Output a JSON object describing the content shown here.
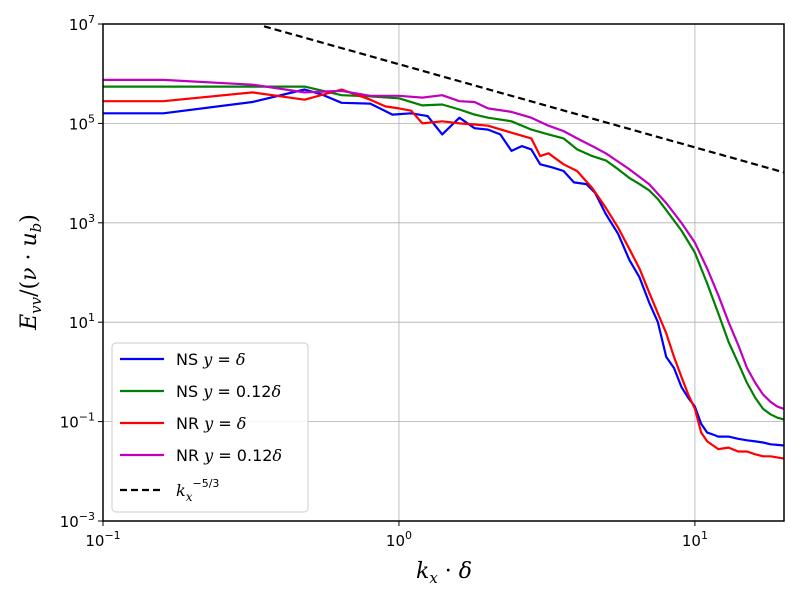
{
  "chart_data": {
    "type": "line",
    "title": "",
    "xlabel": "k_x · δ",
    "ylabel": "E_vv/(ν · u_b)",
    "xscale": "log",
    "yscale": "log",
    "xlim": [
      0.1,
      20
    ],
    "ylim": [
      0.001,
      10000000
    ],
    "grid": true,
    "legend_position": "lower-left",
    "x_ticks": [
      {
        "value": 0.1,
        "base": "10",
        "exp": "−1"
      },
      {
        "value": 1,
        "base": "10",
        "exp": "0"
      },
      {
        "value": 10,
        "base": "10",
        "exp": "1"
      }
    ],
    "y_ticks": [
      {
        "value": 0.001,
        "base": "10",
        "exp": "−3"
      },
      {
        "value": 0.1,
        "base": "10",
        "exp": "−1"
      },
      {
        "value": 10,
        "base": "10",
        "exp": "1"
      },
      {
        "value": 1000,
        "base": "10",
        "exp": "3"
      },
      {
        "value": 100000,
        "base": "10",
        "exp": "5"
      },
      {
        "value": 10000000,
        "base": "10",
        "exp": "7"
      }
    ],
    "series": [
      {
        "name": "NS y = δ",
        "color": "#0000ff",
        "dashed": false,
        "x": [
          0.1,
          0.16,
          0.32,
          0.48,
          0.55,
          0.64,
          0.8,
          0.95,
          1.1,
          1.25,
          1.4,
          1.6,
          1.8,
          2.0,
          2.2,
          2.4,
          2.6,
          2.8,
          3.0,
          3.3,
          3.6,
          3.9,
          4.3,
          4.6,
          5.0,
          5.5,
          6.0,
          6.5,
          7.0,
          7.5,
          8.0,
          8.5,
          9.0,
          9.5,
          10.0,
          10.5,
          11.0,
          11.5,
          12.0,
          13.0,
          14.0,
          15.0,
          16.0,
          17.0,
          18.0,
          19.0,
          20.0
        ],
        "y": [
          160000,
          160000,
          270000,
          480000,
          380000,
          260000,
          250000,
          150000,
          160000,
          140000,
          60000,
          130000,
          80000,
          75000,
          60000,
          28000,
          35000,
          30000,
          15000,
          13000,
          11000,
          6500,
          6000,
          4000,
          1500,
          600,
          180,
          80,
          25,
          10,
          2,
          1.2,
          0.5,
          0.3,
          0.2,
          0.09,
          0.06,
          0.055,
          0.05,
          0.05,
          0.045,
          0.042,
          0.04,
          0.038,
          0.035,
          0.034,
          0.033
        ]
      },
      {
        "name": "NS y = 0.12δ",
        "color": "#008000",
        "dashed": false,
        "x": [
          0.1,
          0.16,
          0.32,
          0.48,
          0.64,
          0.8,
          1.0,
          1.2,
          1.4,
          1.6,
          1.8,
          2.0,
          2.4,
          2.8,
          3.2,
          3.6,
          4.0,
          4.5,
          5.0,
          5.5,
          6.0,
          6.5,
          7.0,
          7.5,
          8.0,
          9.0,
          10.0,
          11.0,
          12.0,
          13.0,
          14.0,
          15.0,
          16.0,
          17.0,
          18.0,
          19.0,
          20.0
        ],
        "y": [
          550000,
          550000,
          550000,
          550000,
          370000,
          350000,
          320000,
          230000,
          240000,
          190000,
          150000,
          130000,
          110000,
          75000,
          60000,
          50000,
          30000,
          22000,
          18000,
          12000,
          8000,
          6000,
          4500,
          3000,
          1800,
          700,
          250,
          60,
          15,
          4,
          1.5,
          0.6,
          0.3,
          0.18,
          0.14,
          0.12,
          0.11
        ]
      },
      {
        "name": "NR y = δ",
        "color": "#ff0000",
        "dashed": false,
        "x": [
          0.1,
          0.16,
          0.32,
          0.48,
          0.64,
          0.8,
          0.9,
          1.0,
          1.1,
          1.2,
          1.4,
          1.6,
          1.8,
          2.0,
          2.4,
          2.8,
          3.0,
          3.2,
          3.6,
          4.0,
          4.5,
          5.0,
          5.5,
          6.0,
          6.5,
          7.0,
          7.5,
          8.0,
          8.5,
          9.0,
          9.5,
          10.0,
          10.5,
          11.0,
          12.0,
          13.0,
          14.0,
          15.0,
          16.0,
          17.0,
          18.0,
          19.0,
          20.0
        ],
        "y": [
          280000,
          280000,
          420000,
          300000,
          480000,
          300000,
          220000,
          200000,
          180000,
          100000,
          110000,
          100000,
          95000,
          90000,
          65000,
          50000,
          22000,
          25000,
          15000,
          11000,
          5000,
          2000,
          800,
          300,
          120,
          40,
          15,
          6,
          2,
          0.8,
          0.35,
          0.18,
          0.06,
          0.04,
          0.028,
          0.03,
          0.025,
          0.025,
          0.022,
          0.02,
          0.02,
          0.019,
          0.018
        ]
      },
      {
        "name": "NR y = 0.12δ",
        "color": "#bf00bf",
        "dashed": false,
        "x": [
          0.1,
          0.16,
          0.32,
          0.48,
          0.64,
          0.8,
          1.0,
          1.2,
          1.4,
          1.6,
          1.8,
          2.0,
          2.4,
          2.8,
          3.2,
          3.6,
          4.0,
          4.5,
          5.0,
          5.5,
          6.0,
          7.0,
          8.0,
          9.0,
          10.0,
          11.0,
          12.0,
          13.0,
          14.0,
          15.0,
          16.0,
          17.0,
          18.0,
          19.0,
          20.0
        ],
        "y": [
          750000,
          750000,
          600000,
          420000,
          450000,
          360000,
          360000,
          330000,
          370000,
          280000,
          270000,
          200000,
          170000,
          130000,
          90000,
          70000,
          50000,
          35000,
          25000,
          17000,
          12000,
          6000,
          2500,
          1000,
          400,
          120,
          35,
          10,
          3.5,
          1.2,
          0.6,
          0.35,
          0.25,
          0.2,
          0.18
        ]
      },
      {
        "name": "k_x^−5/3",
        "color": "#000000",
        "dashed": true,
        "x": [
          0.35,
          20
        ],
        "y": [
          9000000,
          10350
        ]
      }
    ]
  }
}
